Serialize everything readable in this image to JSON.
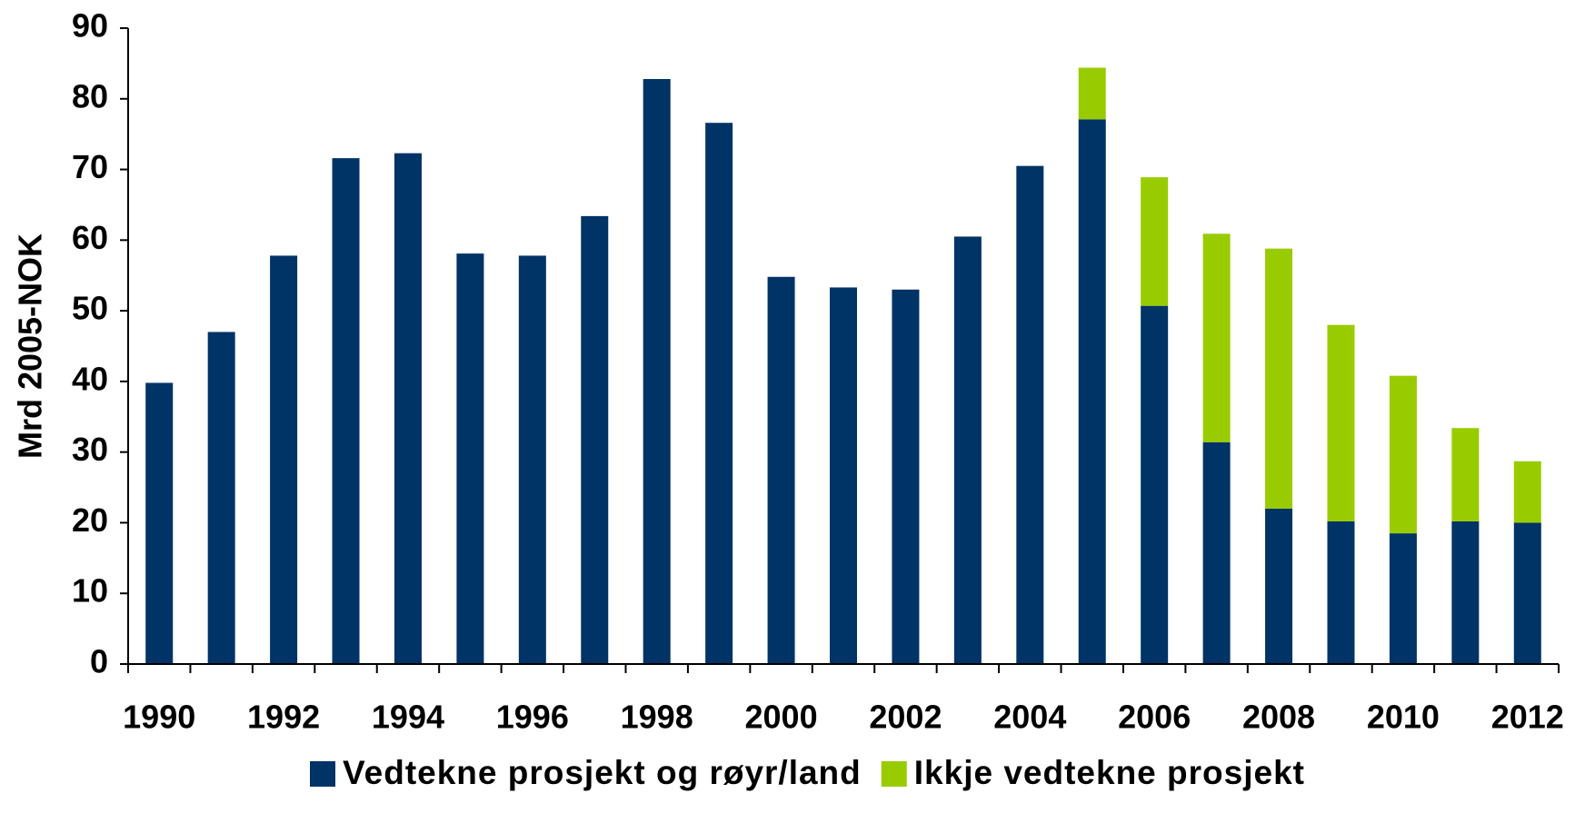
{
  "chart_data": {
    "type": "stacked_bar",
    "y_label": "Mrd 2005-NOK",
    "categories": [
      "1990",
      null,
      "1992",
      null,
      "1994",
      null,
      "1996",
      null,
      "1998",
      null,
      "2000",
      null,
      "2002",
      null,
      "2004",
      null,
      "2006",
      null,
      "2008",
      null,
      "2010",
      null,
      "2012"
    ],
    "series": [
      {
        "name": "Vedtekne prosjekt og røyr/land",
        "color": "#003366",
        "values": [
          39.8,
          47.0,
          57.8,
          71.6,
          72.3,
          58.1,
          57.8,
          63.4,
          82.8,
          76.6,
          54.8,
          53.3,
          53.0,
          60.5,
          70.5,
          77.1,
          50.7,
          31.4,
          22.0,
          20.2,
          18.5,
          20.2,
          20.0
        ]
      },
      {
        "name": "Ikkje vedtekne prosjekt",
        "color": "#99cc00",
        "values": [
          null,
          null,
          null,
          null,
          null,
          null,
          null,
          null,
          null,
          null,
          null,
          null,
          null,
          null,
          null,
          7.3,
          18.2,
          29.5,
          36.8,
          27.8,
          22.3,
          13.2,
          8.7
        ]
      }
    ],
    "ylim": [
      0,
      90
    ],
    "yticks": [
      0,
      10,
      20,
      30,
      40,
      50,
      60,
      70,
      80,
      90
    ],
    "legend": "bottom"
  }
}
